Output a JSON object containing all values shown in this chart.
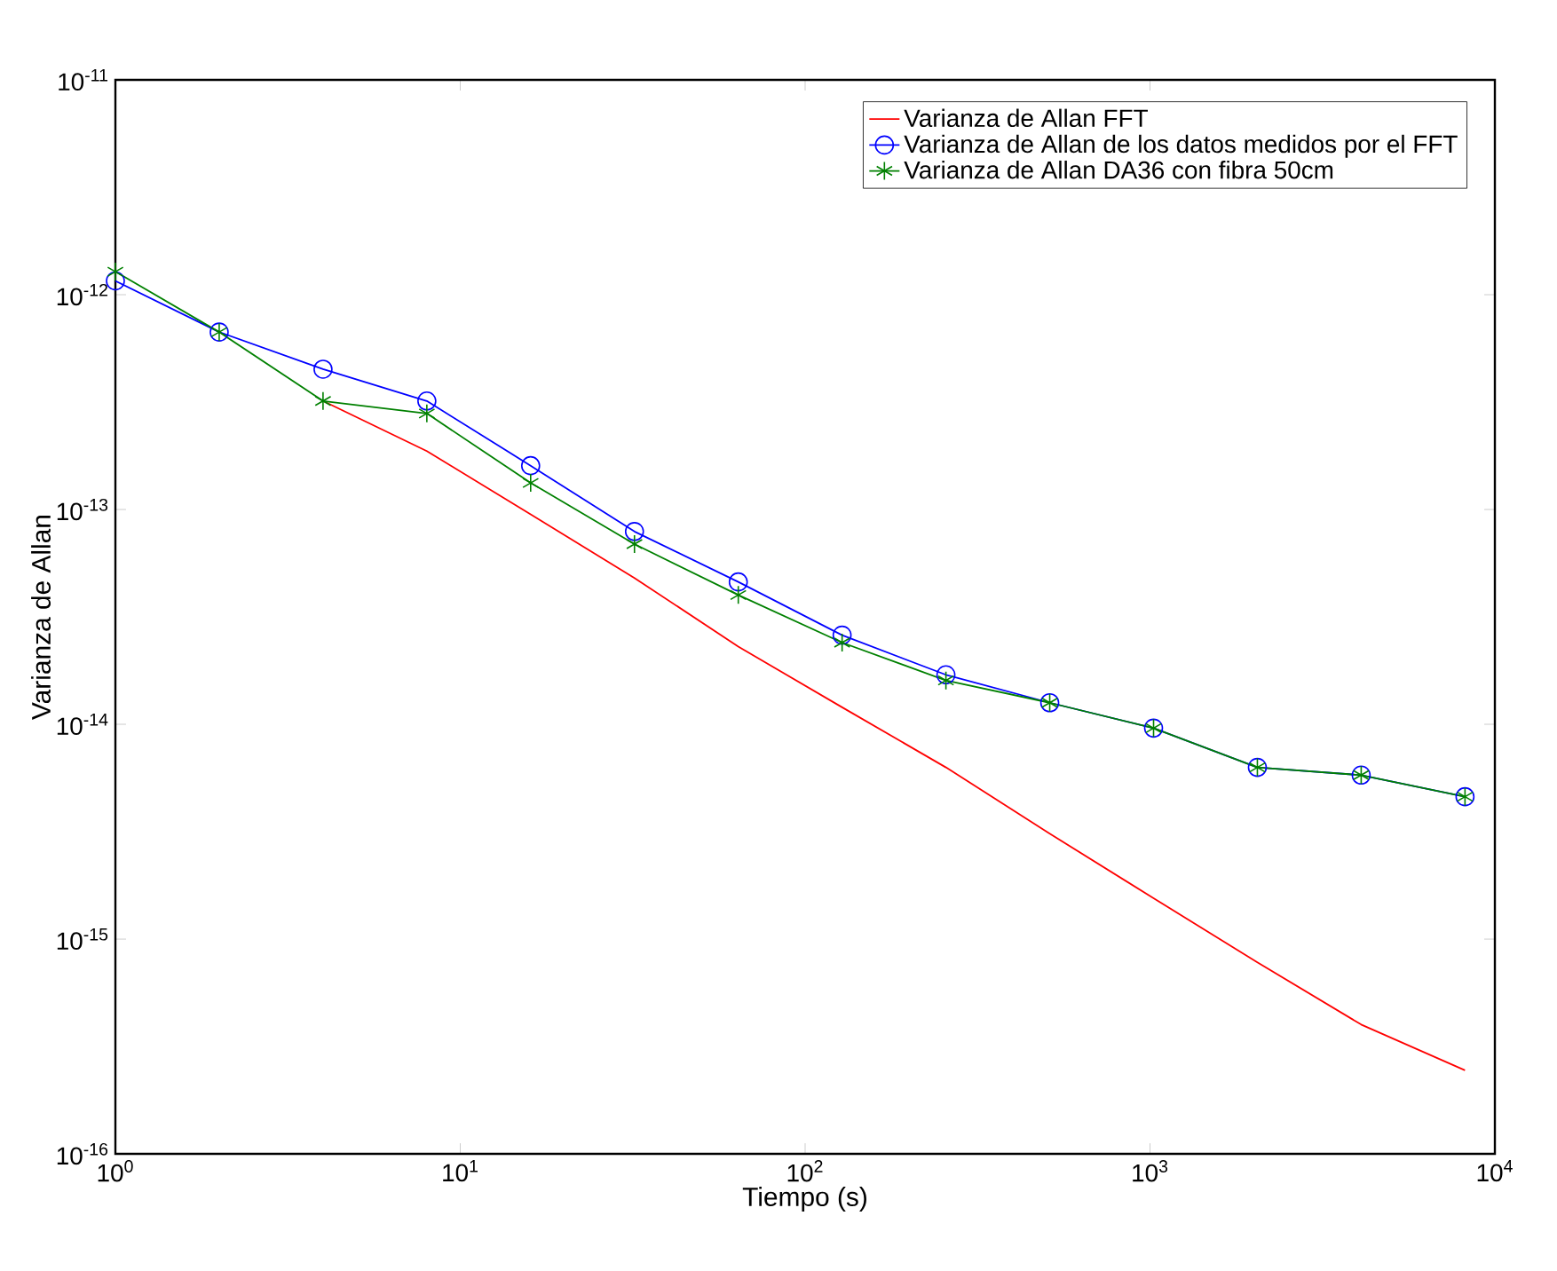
{
  "chart_data": {
    "type": "line",
    "xlabel": "Tiempo (s)",
    "ylabel": "Varianza de Allan",
    "log": "xy",
    "grid": false,
    "legend": "top right",
    "xlim": [
      1,
      10000
    ],
    "ylim": [
      1e-16,
      1e-11
    ],
    "xticks": [
      {
        "value": 1,
        "label": "10$^{0}$"
      },
      {
        "value": 10,
        "label": "10$^{1}$"
      },
      {
        "value": 100,
        "label": "10$^{2}$"
      },
      {
        "value": 1000,
        "label": "10$^{3}$"
      },
      {
        "value": 10000,
        "label": "10$^{4}$"
      }
    ],
    "yticks": [
      {
        "value": 1e-16,
        "label": "10$^{-16}$"
      },
      {
        "value": 1e-15,
        "label": "10$^{-15}$"
      },
      {
        "value": 1e-14,
        "label": "10$^{-14}$"
      },
      {
        "value": 1e-13,
        "label": "10$^{-13}$"
      },
      {
        "value": 1e-12,
        "label": "10$^{-12}$"
      },
      {
        "value": 1e-11,
        "label": "10$^{-11}$"
      }
    ],
    "series": [
      {
        "name": "Varianza de Allan FFT",
        "color": "#ff0000",
        "marker": "none",
        "x": [
          4,
          8,
          16,
          32,
          64,
          128,
          256,
          512,
          1024,
          2048,
          4096,
          8192
        ],
        "values": [
          3.2e-13,
          1.87e-13,
          9.5e-14,
          4.8e-14,
          2.3e-14,
          1.2e-14,
          6.3e-15,
          3.1e-15,
          1.55e-15,
          7.8e-16,
          4e-16,
          2.45e-16
        ]
      },
      {
        "name": "Varianza de Allan de los datos medidos por el FFT",
        "color": "#0000ff",
        "marker": "circle",
        "x": [
          1,
          2,
          4,
          8,
          16,
          32,
          64,
          128,
          256,
          512,
          1024,
          2048,
          4096,
          8192
        ],
        "values": [
          1.16e-12,
          6.7e-13,
          4.5e-13,
          3.2e-13,
          1.6e-13,
          7.9e-14,
          4.6e-14,
          2.6e-14,
          1.7e-14,
          1.26e-14,
          9.6e-15,
          6.3e-15,
          5.8e-15,
          4.6e-15
        ]
      },
      {
        "name": "Varianza de Allan DA36 con fibra 50cm",
        "color": "#008000",
        "marker": "cross",
        "x": [
          1,
          2,
          4,
          8,
          16,
          32,
          64,
          128,
          256,
          512,
          1024,
          2048,
          4096,
          8192
        ],
        "values": [
          1.28e-12,
          6.7e-13,
          3.2e-13,
          2.8e-13,
          1.33e-13,
          6.9e-14,
          4e-14,
          2.4e-14,
          1.6e-14,
          1.26e-14,
          9.6e-15,
          6.3e-15,
          5.8e-15,
          4.6e-15
        ]
      }
    ]
  }
}
